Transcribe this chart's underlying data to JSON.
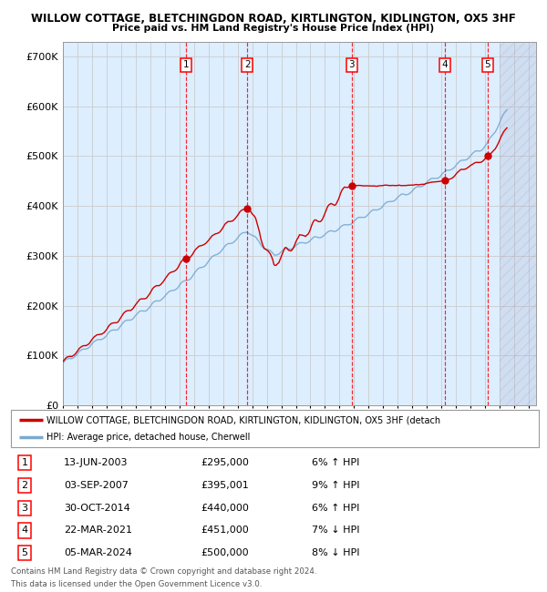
{
  "title1": "WILLOW COTTAGE, BLETCHINGDON ROAD, KIRTLINGTON, KIDLINGTON, OX5 3HF",
  "title2": "Price paid vs. HM Land Registry's House Price Index (HPI)",
  "xlim_start": 1995.0,
  "xlim_end": 2027.5,
  "ylim": [
    0,
    730000
  ],
  "yticks": [
    0,
    100000,
    200000,
    300000,
    400000,
    500000,
    600000,
    700000
  ],
  "ytick_labels": [
    "£0",
    "£100K",
    "£200K",
    "£300K",
    "£400K",
    "£500K",
    "£600K",
    "£700K"
  ],
  "xticks": [
    1995,
    1996,
    1997,
    1998,
    1999,
    2000,
    2001,
    2002,
    2003,
    2004,
    2005,
    2006,
    2007,
    2008,
    2009,
    2010,
    2011,
    2012,
    2013,
    2014,
    2015,
    2016,
    2017,
    2018,
    2019,
    2020,
    2021,
    2022,
    2023,
    2024,
    2025,
    2026,
    2027
  ],
  "red_line_color": "#cc0000",
  "blue_line_color": "#7aaad0",
  "grid_color": "#cccccc",
  "background_color": "#ddeeff",
  "transactions": [
    {
      "num": 1,
      "year": 2003.45,
      "price": 295000,
      "date": "13-JUN-2003",
      "pct": "6%",
      "dir": "↑"
    },
    {
      "num": 2,
      "year": 2007.67,
      "price": 395001,
      "date": "03-SEP-2007",
      "pct": "9%",
      "dir": "↑"
    },
    {
      "num": 3,
      "year": 2014.83,
      "price": 440000,
      "date": "30-OCT-2014",
      "pct": "6%",
      "dir": "↑"
    },
    {
      "num": 4,
      "year": 2021.22,
      "price": 451000,
      "date": "22-MAR-2021",
      "pct": "7%",
      "dir": "↓"
    },
    {
      "num": 5,
      "year": 2024.17,
      "price": 500000,
      "date": "05-MAR-2024",
      "pct": "8%",
      "dir": "↓"
    }
  ],
  "legend_line1": "WILLOW COTTAGE, BLETCHINGDON ROAD, KIRTLINGTON, KIDLINGTON, OX5 3HF (detach",
  "legend_line2": "HPI: Average price, detached house, Cherwell",
  "footer1": "Contains HM Land Registry data © Crown copyright and database right 2024.",
  "footer2": "This data is licensed under the Open Government Licence v3.0.",
  "hatch_start": 2025.0
}
